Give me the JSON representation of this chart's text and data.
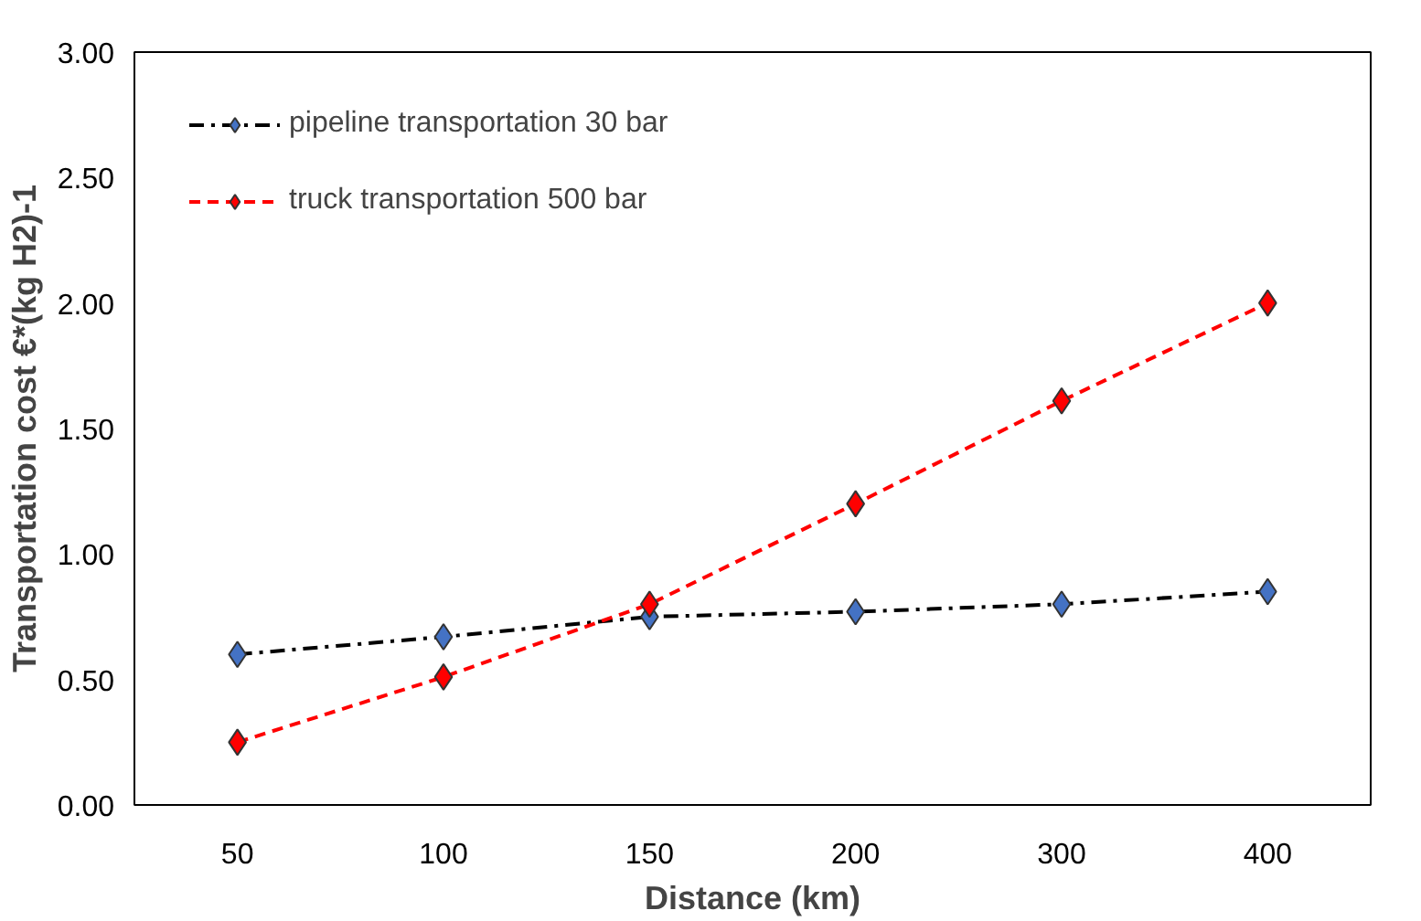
{
  "chart_data": {
    "type": "line",
    "xlabel": "Distance (km)",
    "ylabel": "Transportation cost €*(kg H2)-1",
    "categories": [
      "50",
      "100",
      "150",
      "200",
      "300",
      "400"
    ],
    "series": [
      {
        "name": "pipeline transportation 30 bar",
        "color": "#000000",
        "colors": [
          "#4472c4",
          "#4472c4",
          "#4472c4",
          "#4472c4",
          "#4472c4",
          "#4472c4"
        ],
        "line_style": "dashdot",
        "values": [
          0.6,
          0.67,
          0.75,
          0.77,
          0.8,
          0.85
        ]
      },
      {
        "name": "truck transportation 500 bar",
        "color": "#ff0000",
        "line_style": "dashed",
        "values": [
          0.25,
          0.51,
          0.8,
          1.2,
          1.61,
          2.0
        ]
      }
    ],
    "ylim": [
      0,
      3
    ],
    "yticks": [
      {
        "value": 0,
        "label": "0.00"
      },
      {
        "value": 0.5,
        "label": "0.50"
      },
      {
        "value": 1,
        "label": "1.00"
      },
      {
        "value": 1.5,
        "label": "1.50"
      },
      {
        "value": 2,
        "label": "2.00"
      },
      {
        "value": 2.5,
        "label": "2.50"
      },
      {
        "value": 3,
        "label": "3.00"
      }
    ],
    "grid": false,
    "legend": "top left",
    "marker": "diamond"
  }
}
